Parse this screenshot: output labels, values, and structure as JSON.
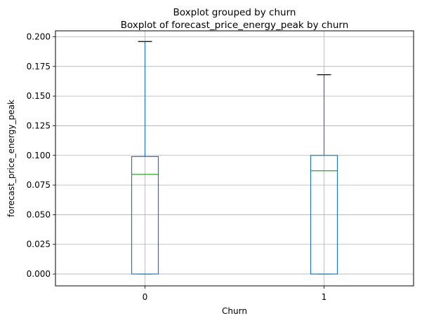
{
  "chart_data": {
    "type": "box",
    "suptitle": "Boxplot grouped by churn",
    "title": "Boxplot of forecast_price_energy_peak by churn",
    "xlabel": "Churn",
    "ylabel": "forecast_price_energy_peak",
    "categories": [
      "0",
      "1"
    ],
    "boxes": [
      {
        "category": "0",
        "whislo": 0.0,
        "q1": 0.0,
        "median": 0.084,
        "q3": 0.099,
        "whishi": 0.196
      },
      {
        "category": "1",
        "whislo": 0.0,
        "q1": 0.0,
        "median": 0.087,
        "q3": 0.1,
        "whishi": 0.168
      }
    ],
    "ylim": [
      -0.01,
      0.205
    ],
    "yticks": [
      0.0,
      0.025,
      0.05,
      0.075,
      0.1,
      0.125,
      0.15,
      0.175,
      0.2
    ],
    "ytick_labels": [
      "0.000",
      "0.025",
      "0.050",
      "0.075",
      "0.100",
      "0.125",
      "0.150",
      "0.175",
      "0.200"
    ],
    "grid": true,
    "colors": {
      "box": "#1f77b4",
      "median": "#2ca02c",
      "cap": "#000000",
      "grid": "#b0b0b0"
    }
  }
}
